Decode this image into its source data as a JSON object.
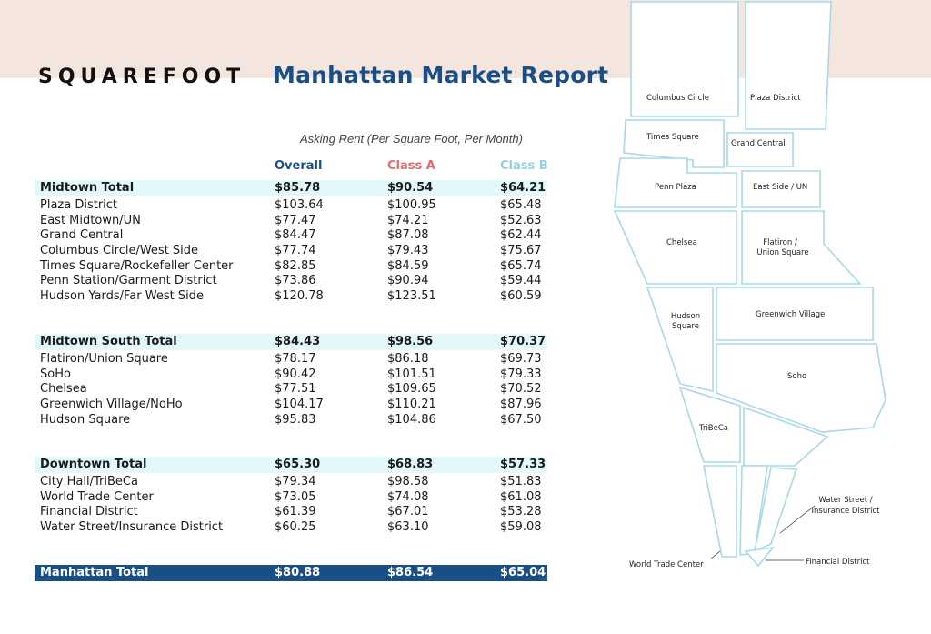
{
  "brand": "SQUAREFOOT",
  "title": "Manhattan Market Report",
  "subtitle": "Asking Rent (Per Square Foot, Per Month)",
  "columns": {
    "overall": "Overall",
    "class_a": "Class A",
    "class_b": "Class B"
  },
  "colors": {
    "overall": "#1a4f86",
    "class_a": "#e06b74",
    "class_b": "#8fd0e2",
    "total_band": "#e3f8fb",
    "header_band": "#f5e5df"
  },
  "sections": [
    {
      "total": {
        "name": "Midtown Total",
        "overall": "$85.78",
        "a": "$90.54",
        "b": "$64.21"
      },
      "rows": [
        {
          "name": "Plaza District",
          "overall": "$103.64",
          "a": "$100.95",
          "b": "$65.48"
        },
        {
          "name": "East Midtown/UN",
          "overall": "$77.47",
          "a": "$74.21",
          "b": "$52.63"
        },
        {
          "name": "Grand Central",
          "overall": "$84.47",
          "a": "$87.08",
          "b": "$62.44"
        },
        {
          "name": "Columbus Circle/West Side",
          "overall": "$77.74",
          "a": "$79.43",
          "b": "$75.67"
        },
        {
          "name": "Times Square/Rockefeller Center",
          "overall": "$82.85",
          "a": "$84.59",
          "b": "$65.74"
        },
        {
          "name": "Penn Station/Garment District",
          "overall": "$73.86",
          "a": "$90.94",
          "b": "$59.44"
        },
        {
          "name": "Hudson Yards/Far West Side",
          "overall": "$120.78",
          "a": "$123.51",
          "b": "$60.59"
        }
      ]
    },
    {
      "total": {
        "name": "Midtown South Total",
        "overall": "$84.43",
        "a": "$98.56",
        "b": "$70.37"
      },
      "rows": [
        {
          "name": "Flatiron/Union Square",
          "overall": "$78.17",
          "a": "$86.18",
          "b": "$69.73"
        },
        {
          "name": "SoHo",
          "overall": "$90.42",
          "a": "$101.51",
          "b": "$79.33"
        },
        {
          "name": "Chelsea",
          "overall": "$77.51",
          "a": "$109.65",
          "b": "$70.52"
        },
        {
          "name": "Greenwich Village/NoHo",
          "overall": "$104.17",
          "a": "$110.21",
          "b": "$87.96"
        },
        {
          "name": "Hudson Square",
          "overall": "$95.83",
          "a": "$104.86",
          "b": "$67.50"
        }
      ]
    },
    {
      "total": {
        "name": "Downtown Total",
        "overall": "$65.30",
        "a": "$68.83",
        "b": "$57.33"
      },
      "rows": [
        {
          "name": "City Hall/TriBeCa",
          "overall": "$79.34",
          "a": "$98.58",
          "b": "$51.83"
        },
        {
          "name": "World Trade Center",
          "overall": "$73.05",
          "a": "$74.08",
          "b": "$61.08"
        },
        {
          "name": "Financial District",
          "overall": "$61.39",
          "a": "$67.01",
          "b": "$53.28"
        },
        {
          "name": "Water Street/Insurance District",
          "overall": "$60.25",
          "a": "$63.10",
          "b": "$59.08"
        }
      ]
    }
  ],
  "grand_total": {
    "name": "Manhattan Total",
    "overall": "$80.88",
    "a": "$86.54",
    "b": "$65.04"
  },
  "map_labels": {
    "columbus_circle": "Columbus Circle",
    "plaza_district": "Plaza District",
    "times_square": "Times Square",
    "grand_central": "Grand Central",
    "penn_plaza": "Penn Plaza",
    "east_side_un": "East Side / UN",
    "chelsea": "Chelsea",
    "flatiron_1": "Flatiron /",
    "flatiron_2": "Union Square",
    "hudson_1": "Hudson",
    "hudson_2": "Square",
    "greenwich": "Greenwich Village",
    "soho": "Soho",
    "tribeca": "TriBeCa",
    "water_1": "Water Street /",
    "water_2": "Insurance District",
    "wtc": "World Trade Center",
    "fidi": "Financial District"
  }
}
